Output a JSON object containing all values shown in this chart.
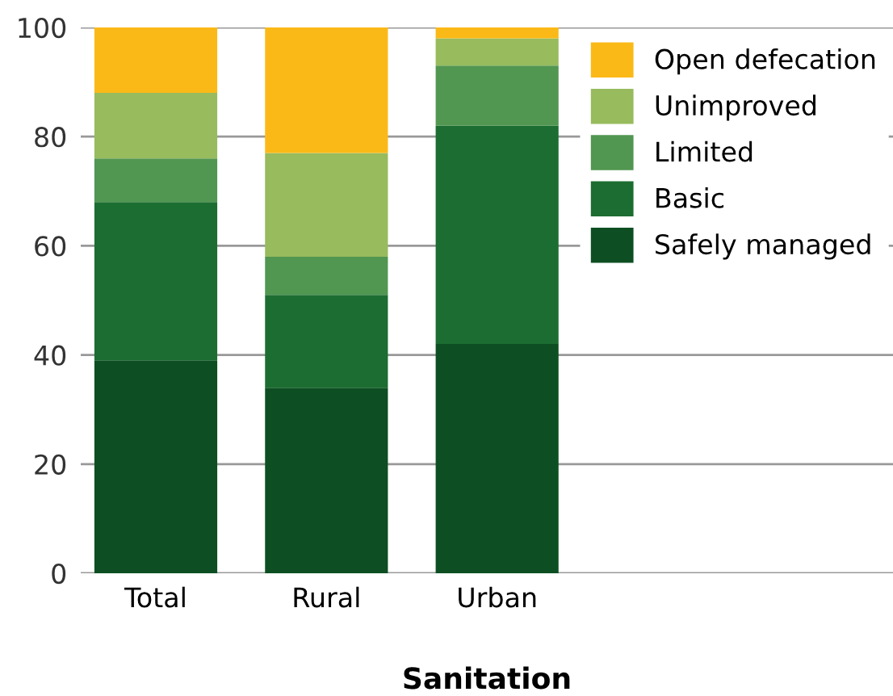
{
  "chart_data": {
    "type": "bar",
    "stacked": true,
    "xlabel": "Sanitation",
    "categories": [
      "Total",
      "Rural",
      "Urban"
    ],
    "series": [
      {
        "name": "Safely managed",
        "color": "#0d4f22",
        "values": [
          39,
          34,
          42
        ]
      },
      {
        "name": "Basic",
        "color": "#1c6d31",
        "values": [
          29,
          17,
          40
        ]
      },
      {
        "name": "Limited",
        "color": "#519651",
        "values": [
          8,
          7,
          11
        ]
      },
      {
        "name": "Unimproved",
        "color": "#97bb5d",
        "values": [
          12,
          19,
          5
        ]
      },
      {
        "name": "Open defecation",
        "color": "#fbb917",
        "values": [
          12,
          23,
          2
        ]
      }
    ],
    "ylim": [
      0,
      100
    ],
    "yticks": [
      0,
      20,
      40,
      60,
      80,
      100
    ],
    "grid": "y",
    "legend": "top right"
  }
}
